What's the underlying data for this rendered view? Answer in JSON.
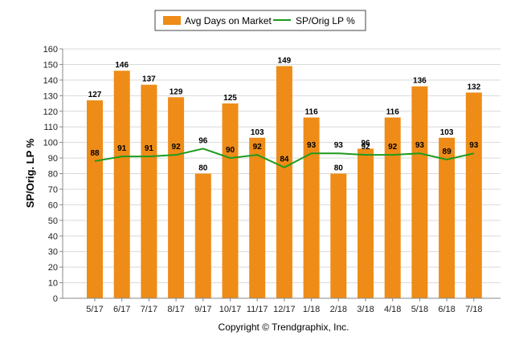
{
  "chart_data": {
    "type": "bar",
    "categories": [
      "5/17",
      "6/17",
      "7/17",
      "8/17",
      "9/17",
      "10/17",
      "11/17",
      "12/17",
      "1/18",
      "2/18",
      "3/18",
      "4/18",
      "5/18",
      "6/18",
      "7/18"
    ],
    "series": [
      {
        "name": "Avg Days on Market",
        "type": "bar",
        "color": "#EE8C17",
        "values": [
          127,
          146,
          137,
          129,
          80,
          125,
          103,
          149,
          116,
          80,
          96,
          116,
          136,
          103,
          132
        ]
      },
      {
        "name": "SP/Orig LP %",
        "type": "line",
        "color": "#1E9A1E",
        "values": [
          88,
          91,
          91,
          92,
          96,
          90,
          92,
          84,
          93,
          93,
          92,
          92,
          93,
          89,
          93
        ]
      }
    ],
    "ylabel": "SP/Orig. LP %",
    "xlabel": "",
    "ylim": [
      0,
      160
    ],
    "yticks": [
      0,
      10,
      20,
      30,
      40,
      50,
      60,
      70,
      80,
      90,
      100,
      110,
      120,
      130,
      140,
      150,
      160
    ],
    "grid": true,
    "legend_position": "top-center"
  },
  "footer": {
    "copyright": "Copyright © Trendgraphix, Inc."
  }
}
